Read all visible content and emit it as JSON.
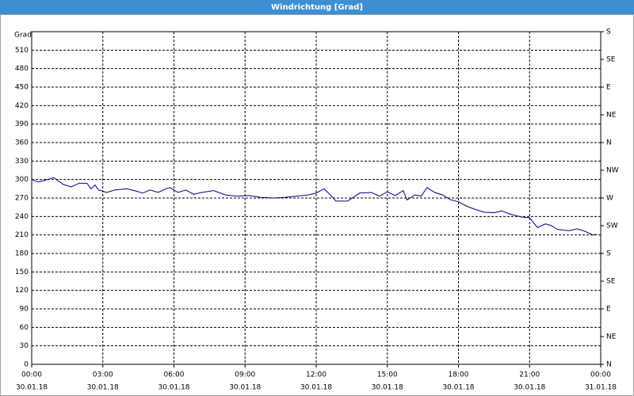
{
  "chart_data": {
    "type": "line",
    "title": "Windrichtung [Grad]",
    "y_label": "Grad",
    "color": "#000080",
    "x": [
      0,
      0.27,
      0.5,
      0.93,
      1.33,
      1.67,
      2,
      2.33,
      2.5,
      2.67,
      2.83,
      3.17,
      3.5,
      4,
      4.33,
      4.67,
      5,
      5.33,
      5.67,
      5.83,
      6.17,
      6.5,
      6.83,
      7.17,
      7.67,
      8.17,
      8.67,
      9.17,
      9.67,
      10.17,
      10.67,
      11.17,
      11.67,
      12,
      12.33,
      12.6,
      12.83,
      13.33,
      13.83,
      14.33,
      14.67,
      15,
      15.33,
      15.67,
      15.83,
      16.17,
      16.43,
      16.67,
      17,
      17.33,
      17.67,
      18,
      18.33,
      18.67,
      19.07,
      19.5,
      19.83,
      20.17,
      20.67,
      21,
      21.33,
      21.67,
      21.93,
      22.17,
      22.67,
      23,
      23.33,
      23.67,
      23.83
    ],
    "values": [
      300,
      296,
      298,
      303,
      292,
      288,
      294,
      294,
      285,
      291,
      283,
      279,
      283,
      285,
      282,
      278,
      283,
      279,
      285,
      287,
      279,
      283,
      276,
      279,
      282,
      275,
      273,
      274,
      271,
      270,
      271,
      273,
      275,
      278,
      285,
      275,
      265,
      265,
      278,
      279,
      273,
      280,
      274,
      282,
      267,
      275,
      273,
      287,
      279,
      275,
      267,
      264,
      257,
      252,
      247,
      246,
      249,
      244,
      239,
      238,
      222,
      228,
      225,
      219,
      217,
      220,
      216,
      210,
      211
    ],
    "xlim": [
      0,
      24
    ],
    "xticks": [
      {
        "value": 0,
        "label": "00:00",
        "date": "30.01.18"
      },
      {
        "value": 3,
        "label": "03:00",
        "date": "30.01.18"
      },
      {
        "value": 6,
        "label": "06:00",
        "date": "30.01.18"
      },
      {
        "value": 9,
        "label": "09:00",
        "date": "30.01.18"
      },
      {
        "value": 12,
        "label": "12:00",
        "date": "30.01.18"
      },
      {
        "value": 15,
        "label": "15:00",
        "date": "30.01.18"
      },
      {
        "value": 18,
        "label": "18:00",
        "date": "30.01.18"
      },
      {
        "value": 21,
        "label": "21:00",
        "date": "30.01.18"
      },
      {
        "value": 24,
        "label": "00:00",
        "date": "31.01.18"
      }
    ],
    "ylim": [
      0,
      540
    ],
    "yticks": [
      0,
      30,
      60,
      90,
      120,
      150,
      180,
      210,
      240,
      270,
      300,
      330,
      360,
      390,
      420,
      450,
      480,
      510
    ],
    "y2lim": [
      0,
      540
    ],
    "y2ticks": [
      {
        "value": 540,
        "label": "S"
      },
      {
        "value": 495,
        "label": "SE"
      },
      {
        "value": 450,
        "label": "E"
      },
      {
        "value": 405,
        "label": "NE"
      },
      {
        "value": 360,
        "label": "N"
      },
      {
        "value": 315,
        "label": "NW"
      },
      {
        "value": 270,
        "label": "W"
      },
      {
        "value": 225,
        "label": "SW"
      },
      {
        "value": 180,
        "label": "S"
      },
      {
        "value": 135,
        "label": "SE"
      },
      {
        "value": 90,
        "label": "E"
      },
      {
        "value": 45,
        "label": "NE"
      },
      {
        "value": 0,
        "label": "N"
      }
    ],
    "grid": true
  }
}
